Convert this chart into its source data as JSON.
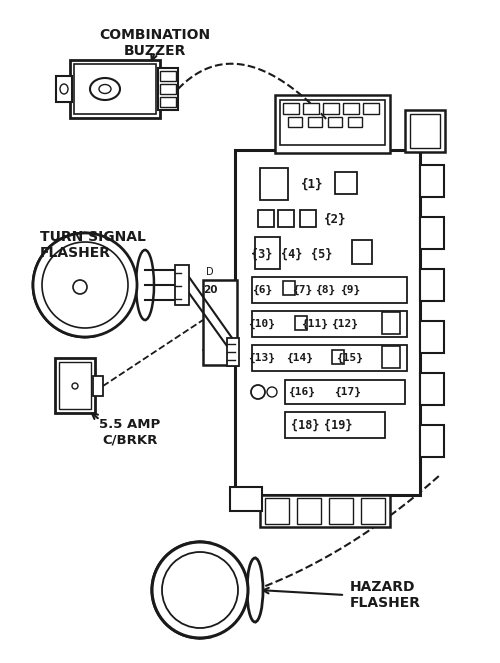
{
  "bg_color": "#ffffff",
  "line_color": "#1a1a1a",
  "labels": {
    "combination_buzzer": "COMBINATION\nBUZZER",
    "turn_signal_flasher": "TURN SIGNAL\nFLASHER",
    "hazard_flasher": "HAZARD\nFLASHER",
    "c_brkr": "5.5 AMP\nC/BRKR"
  },
  "label_20": "20",
  "label_D": "D"
}
